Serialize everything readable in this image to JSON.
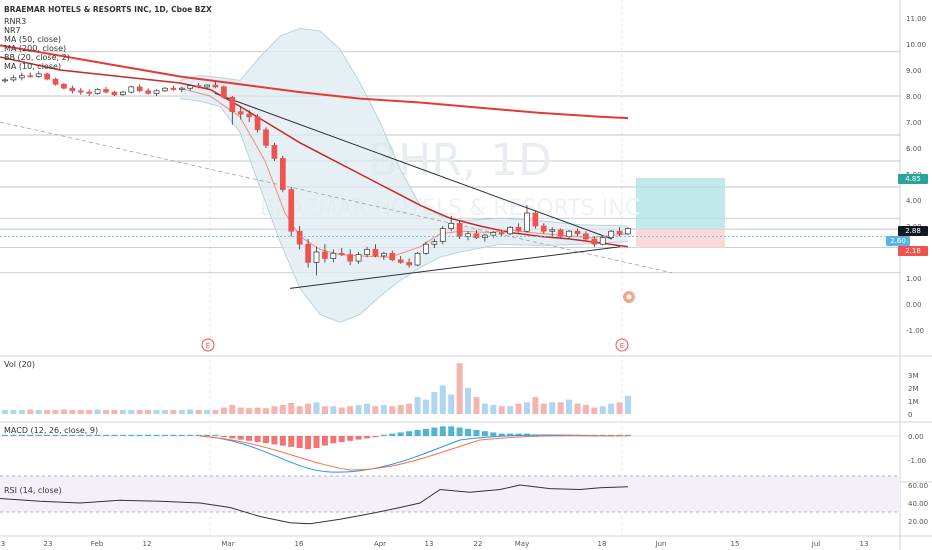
{
  "header": {
    "title": "BRAEMAR HOTELS & RESORTS INC, 1D, Cboe BZX",
    "indicators": [
      "RNR3",
      "NR7",
      "MA (50, close)",
      "MA (200, close)",
      "BB (20, close, 2)",
      "MA (10, close)"
    ]
  },
  "watermark": {
    "symbol": "BHR, 1D",
    "name": "BRAEMAR HOTELS & RESORTS INC"
  },
  "price_tags": {
    "target": "4.85",
    "current": "2.88",
    "mid": "2.60",
    "stop": "2.18"
  },
  "panes": {
    "volume": {
      "label": "Vol (20)",
      "ticks": [
        "3M",
        "2M",
        "1M",
        "0"
      ]
    },
    "macd": {
      "label": "MACD (12, 26, close, 9)",
      "ticks": [
        "0.00",
        "-1.00"
      ]
    },
    "rsi": {
      "label": "RSI (14, close)",
      "ticks": [
        "60.00",
        "40.00",
        "20.00"
      ]
    }
  },
  "earnings_marker": "E",
  "colors": {
    "up": "#5ab5e6",
    "down": "#ef5350",
    "ma200": "#e53935",
    "bb": "#b7d3e0",
    "target_zone": "#b2e3e3",
    "stop_zone": "#fbd5d5"
  },
  "chart_data": {
    "type": "candlestick",
    "title": "BRAEMAR HOTELS & RESORTS INC, 1D, Cboe BZX",
    "y_axis": {
      "ticks": [
        "11.00",
        "10.00",
        "9.00",
        "8.00",
        "7.00",
        "6.00",
        "5.00",
        "4.00",
        "3.00",
        "2.00",
        "1.00",
        "0.00",
        "-1.00"
      ],
      "range": [
        -1.5,
        11.5
      ]
    },
    "x_axis": {
      "ticks": [
        "3",
        "23",
        "Feb",
        "12",
        "Mar",
        "16",
        "Apr",
        "13",
        "22",
        "May",
        "18",
        "Jun",
        "15",
        "Jul",
        "13"
      ]
    },
    "ohlc": [
      [
        8.6,
        8.7,
        8.5,
        8.62
      ],
      [
        8.62,
        8.8,
        8.55,
        8.7
      ],
      [
        8.7,
        8.9,
        8.6,
        8.78
      ],
      [
        8.78,
        8.9,
        8.7,
        8.75
      ],
      [
        8.75,
        8.95,
        8.7,
        8.85
      ],
      [
        8.85,
        8.9,
        8.6,
        8.65
      ],
      [
        8.65,
        8.7,
        8.4,
        8.45
      ],
      [
        8.45,
        8.5,
        8.25,
        8.3
      ],
      [
        8.3,
        8.4,
        8.1,
        8.2
      ],
      [
        8.2,
        8.3,
        8.05,
        8.15
      ],
      [
        8.15,
        8.25,
        8.0,
        8.1
      ],
      [
        8.1,
        8.3,
        8.05,
        8.25
      ],
      [
        8.25,
        8.35,
        8.1,
        8.15
      ],
      [
        8.15,
        8.2,
        8.0,
        8.05
      ],
      [
        8.05,
        8.2,
        8.0,
        8.15
      ],
      [
        8.15,
        8.4,
        8.1,
        8.35
      ],
      [
        8.35,
        8.45,
        8.15,
        8.2
      ],
      [
        8.2,
        8.3,
        8.05,
        8.1
      ],
      [
        8.1,
        8.25,
        8.0,
        8.2
      ],
      [
        8.2,
        8.35,
        8.15,
        8.3
      ],
      [
        8.3,
        8.4,
        8.2,
        8.25
      ],
      [
        8.25,
        8.35,
        8.15,
        8.3
      ],
      [
        8.3,
        8.45,
        8.2,
        8.4
      ],
      [
        8.4,
        8.5,
        8.3,
        8.35
      ],
      [
        8.35,
        8.45,
        8.25,
        8.42
      ],
      [
        8.42,
        8.55,
        8.3,
        8.35
      ],
      [
        8.35,
        8.4,
        7.9,
        7.95
      ],
      [
        7.95,
        8.0,
        6.9,
        7.4
      ],
      [
        7.4,
        7.6,
        7.1,
        7.3
      ],
      [
        7.3,
        7.45,
        7.0,
        7.2
      ],
      [
        7.2,
        7.3,
        6.6,
        6.7
      ],
      [
        6.7,
        6.8,
        6.0,
        6.1
      ],
      [
        6.1,
        6.2,
        5.5,
        5.6
      ],
      [
        5.6,
        5.7,
        4.3,
        4.4
      ],
      [
        4.4,
        4.5,
        2.6,
        2.8
      ],
      [
        2.8,
        3.0,
        2.1,
        2.3
      ],
      [
        2.3,
        2.5,
        1.4,
        1.6
      ],
      [
        1.6,
        2.2,
        1.1,
        2.0
      ],
      [
        2.0,
        2.3,
        1.6,
        1.75
      ],
      [
        1.75,
        2.1,
        1.6,
        1.95
      ],
      [
        1.95,
        2.15,
        1.85,
        1.9
      ],
      [
        1.9,
        2.1,
        1.5,
        1.65
      ],
      [
        1.65,
        2.0,
        1.55,
        1.9
      ],
      [
        1.9,
        2.2,
        1.8,
        2.1
      ],
      [
        2.1,
        2.3,
        1.8,
        1.85
      ],
      [
        1.85,
        2.0,
        1.7,
        1.95
      ],
      [
        1.95,
        2.05,
        1.65,
        1.7
      ],
      [
        1.7,
        1.85,
        1.55,
        1.6
      ],
      [
        1.6,
        1.75,
        1.4,
        1.5
      ],
      [
        1.5,
        2.0,
        1.45,
        1.95
      ],
      [
        1.95,
        2.4,
        1.9,
        2.3
      ],
      [
        2.3,
        2.5,
        2.15,
        2.4
      ],
      [
        2.4,
        3.0,
        2.3,
        2.9
      ],
      [
        2.9,
        3.4,
        2.8,
        3.1
      ],
      [
        3.1,
        3.2,
        2.5,
        2.6
      ],
      [
        2.6,
        2.8,
        2.45,
        2.7
      ],
      [
        2.7,
        2.85,
        2.5,
        2.55
      ],
      [
        2.55,
        2.7,
        2.4,
        2.65
      ],
      [
        2.65,
        2.8,
        2.55,
        2.75
      ],
      [
        2.75,
        2.85,
        2.6,
        2.7
      ],
      [
        2.7,
        3.0,
        2.65,
        2.95
      ],
      [
        2.95,
        3.1,
        2.75,
        2.8
      ],
      [
        2.8,
        3.8,
        2.75,
        3.5
      ],
      [
        3.5,
        3.6,
        2.9,
        3.0
      ],
      [
        3.0,
        3.1,
        2.7,
        2.8
      ],
      [
        2.8,
        2.95,
        2.6,
        2.85
      ],
      [
        2.85,
        2.9,
        2.55,
        2.6
      ],
      [
        2.6,
        2.85,
        2.5,
        2.8
      ],
      [
        2.8,
        2.9,
        2.6,
        2.7
      ],
      [
        2.7,
        2.8,
        2.45,
        2.5
      ],
      [
        2.5,
        2.6,
        2.2,
        2.3
      ],
      [
        2.3,
        2.6,
        2.25,
        2.55
      ],
      [
        2.55,
        2.85,
        2.5,
        2.8
      ],
      [
        2.8,
        2.95,
        2.6,
        2.7
      ],
      [
        2.7,
        2.95,
        2.65,
        2.9
      ]
    ],
    "ma200": [
      [
        0,
        9.95
      ],
      [
        60,
        9.55
      ],
      [
        120,
        9.15
      ],
      [
        180,
        8.75
      ],
      [
        240,
        8.45
      ],
      [
        300,
        8.15
      ],
      [
        360,
        7.9
      ],
      [
        420,
        7.75
      ],
      [
        480,
        7.55
      ],
      [
        540,
        7.35
      ],
      [
        600,
        7.2
      ],
      [
        628,
        7.15
      ]
    ],
    "ma50": [
      [
        0,
        9.5
      ],
      [
        60,
        9.0
      ],
      [
        120,
        8.75
      ],
      [
        180,
        8.5
      ],
      [
        210,
        8.25
      ],
      [
        240,
        7.6
      ],
      [
        270,
        6.9
      ],
      [
        300,
        6.2
      ],
      [
        330,
        5.6
      ],
      [
        360,
        5.0
      ],
      [
        390,
        4.4
      ],
      [
        420,
        3.8
      ],
      [
        450,
        3.3
      ],
      [
        480,
        3.0
      ],
      [
        510,
        2.75
      ],
      [
        540,
        2.6
      ],
      [
        570,
        2.5
      ],
      [
        600,
        2.35
      ],
      [
        628,
        2.2
      ]
    ],
    "ma10": [
      [
        180,
        8.3
      ],
      [
        210,
        8.0
      ],
      [
        240,
        7.2
      ],
      [
        265,
        5.5
      ],
      [
        285,
        3.5
      ],
      [
        300,
        2.6
      ],
      [
        320,
        2.1
      ],
      [
        340,
        1.9
      ],
      [
        360,
        1.85
      ],
      [
        390,
        1.8
      ],
      [
        420,
        2.2
      ],
      [
        440,
        2.7
      ],
      [
        460,
        2.8
      ],
      [
        490,
        2.75
      ],
      [
        510,
        2.85
      ],
      [
        530,
        2.75
      ],
      [
        560,
        2.65
      ],
      [
        590,
        2.55
      ],
      [
        628,
        2.7
      ]
    ],
    "bb_upper": [
      [
        180,
        8.6
      ],
      [
        200,
        8.8
      ],
      [
        220,
        8.7
      ],
      [
        240,
        8.6
      ],
      [
        260,
        9.5
      ],
      [
        280,
        10.3
      ],
      [
        300,
        10.6
      ],
      [
        320,
        10.5
      ],
      [
        340,
        9.8
      ],
      [
        360,
        8.5
      ],
      [
        380,
        7.0
      ],
      [
        400,
        5.2
      ],
      [
        420,
        3.8
      ],
      [
        440,
        3.4
      ],
      [
        460,
        3.2
      ],
      [
        500,
        3.3
      ],
      [
        540,
        3.2
      ],
      [
        580,
        3.05
      ],
      [
        628,
        3.0
      ]
    ],
    "bb_lower": [
      [
        180,
        7.9
      ],
      [
        200,
        7.8
      ],
      [
        220,
        7.6
      ],
      [
        240,
        6.6
      ],
      [
        260,
        4.5
      ],
      [
        280,
        2.4
      ],
      [
        300,
        0.6
      ],
      [
        320,
        -0.4
      ],
      [
        340,
        -0.7
      ],
      [
        360,
        -0.4
      ],
      [
        380,
        0.3
      ],
      [
        400,
        0.9
      ],
      [
        420,
        1.4
      ],
      [
        440,
        1.8
      ],
      [
        460,
        2.0
      ],
      [
        500,
        2.3
      ],
      [
        540,
        2.25
      ],
      [
        580,
        2.3
      ],
      [
        628,
        2.4
      ]
    ],
    "trendlines": [
      {
        "from": [
          215,
          8.1
        ],
        "to": [
          612,
          2.5
        ]
      },
      {
        "from": [
          290,
          0.6
        ],
        "to": [
          620,
          2.2
        ]
      },
      {
        "from": [
          0,
          7.0
        ],
        "to": [
          672,
          1.2
        ],
        "dashed": true
      }
    ],
    "horizontal_levels": [
      9.7,
      8.0,
      6.5,
      5.5,
      4.5,
      3.3,
      2.88,
      2.18,
      1.2
    ],
    "volume": [
      0.3,
      0.3,
      0.3,
      0.35,
      0.3,
      0.3,
      0.3,
      0.35,
      0.3,
      0.3,
      0.3,
      0.35,
      0.3,
      0.3,
      0.3,
      0.3,
      0.3,
      0.3,
      0.3,
      0.3,
      0.3,
      0.3,
      0.35,
      0.3,
      0.3,
      0.3,
      0.5,
      0.7,
      0.5,
      0.45,
      0.5,
      0.45,
      0.6,
      0.7,
      0.85,
      0.6,
      0.8,
      0.9,
      0.6,
      0.6,
      0.5,
      0.6,
      0.7,
      0.8,
      0.6,
      0.7,
      0.6,
      0.7,
      0.8,
      1.3,
      1.1,
      1.7,
      2.2,
      1.5,
      3.9,
      2.0,
      1.3,
      0.8,
      0.7,
      0.6,
      0.6,
      0.8,
      0.9,
      1.3,
      0.8,
      0.9,
      0.9,
      1.1,
      0.8,
      0.7,
      0.5,
      0.6,
      0.8,
      0.9,
      1.4
    ],
    "macd_hist": [
      0.05,
      0.05,
      0.05,
      0.05,
      0.05,
      0.05,
      0.05,
      0.05,
      0.05,
      0.05,
      0.05,
      0.05,
      0.05,
      0.05,
      0.05,
      0.05,
      0.05,
      0.05,
      0.05,
      0.05,
      0.05,
      0.05,
      0.05,
      0.05,
      0.05,
      0.05,
      -0.05,
      -0.1,
      -0.15,
      -0.2,
      -0.25,
      -0.3,
      -0.35,
      -0.4,
      -0.45,
      -0.5,
      -0.55,
      -0.5,
      -0.4,
      -0.3,
      -0.25,
      -0.2,
      -0.15,
      -0.1,
      -0.05,
      0.05,
      0.1,
      0.15,
      0.2,
      0.25,
      0.3,
      0.35,
      0.4,
      0.4,
      0.35,
      0.3,
      0.25,
      0.2,
      0.15,
      0.1,
      0.1,
      0.1,
      0.1,
      0.05,
      0.05,
      0.05,
      0.05,
      0.05,
      0.05,
      0.05,
      0.05,
      0.05,
      0.05,
      0.05,
      0.05
    ],
    "rsi": [
      [
        0,
        45
      ],
      [
        40,
        42
      ],
      [
        80,
        40
      ],
      [
        120,
        43
      ],
      [
        160,
        42
      ],
      [
        200,
        40
      ],
      [
        230,
        35
      ],
      [
        260,
        25
      ],
      [
        290,
        18
      ],
      [
        310,
        17
      ],
      [
        340,
        22
      ],
      [
        370,
        28
      ],
      [
        400,
        35
      ],
      [
        420,
        40
      ],
      [
        440,
        55
      ],
      [
        470,
        52
      ],
      [
        500,
        55
      ],
      [
        520,
        60
      ],
      [
        550,
        56
      ],
      [
        580,
        55
      ],
      [
        600,
        57
      ],
      [
        628,
        58
      ]
    ]
  }
}
